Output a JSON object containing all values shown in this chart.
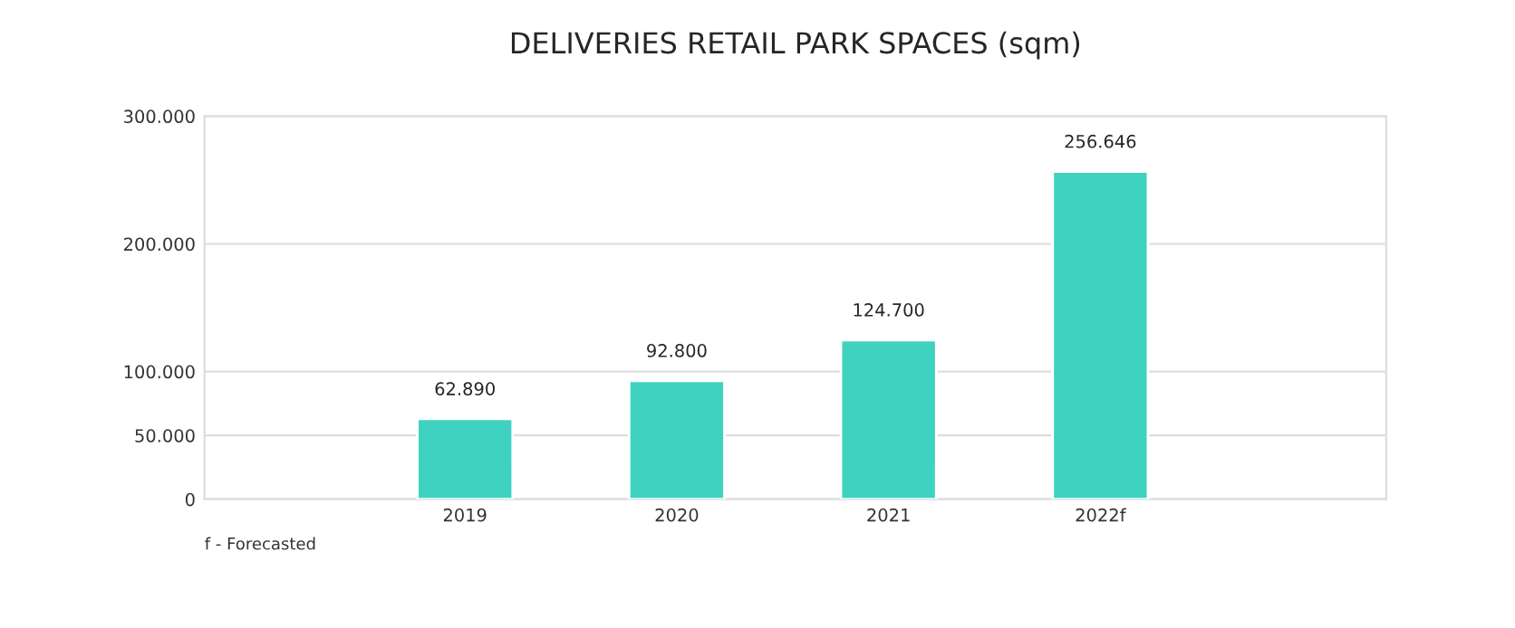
{
  "chart_data": {
    "type": "bar",
    "title": "DELIVERIES RETAIL PARK SPACES (sqm)",
    "categories": [
      "2019",
      "2020",
      "2021",
      "2022f"
    ],
    "values": [
      62890,
      92800,
      124700,
      256646
    ],
    "value_labels": [
      "62.890",
      "92.800",
      "124.700",
      "256.646"
    ],
    "color": "#3fd2c0",
    "ylim": [
      0,
      300000
    ],
    "yticks": [
      {
        "value": 0,
        "label": "0"
      },
      {
        "value": 50000,
        "label": "50.000"
      },
      {
        "value": 100000,
        "label": "100.000"
      },
      {
        "value": 200000,
        "label": "200.000"
      },
      {
        "value": 300000,
        "label": "300.000"
      }
    ],
    "grid": "y",
    "annotations": [
      "f - Forecasted"
    ]
  }
}
